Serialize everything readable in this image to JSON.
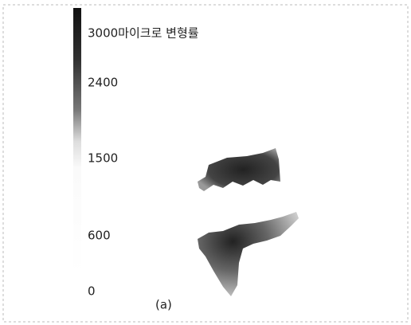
{
  "colorbar": {
    "labels": [
      "3000마이크로 변형률",
      "2400",
      "1500",
      "600",
      "0"
    ]
  },
  "caption": "(a)"
}
